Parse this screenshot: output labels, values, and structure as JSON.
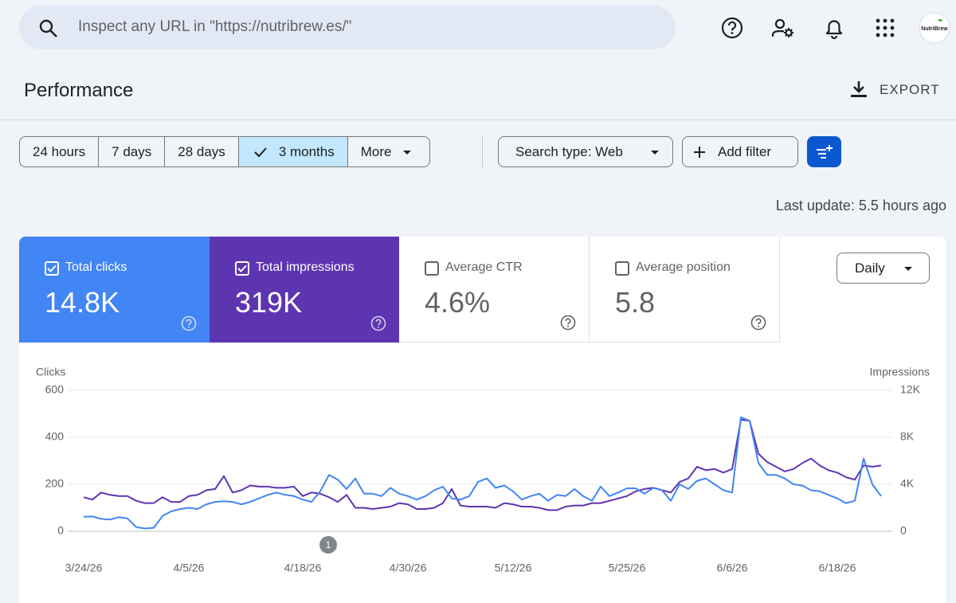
{
  "search": {
    "placeholder": "Inspect any URL in \"https://nutribrew.es/\""
  },
  "header": {
    "avatar": "NutriBrew",
    "title": "Performance",
    "export": "EXPORT"
  },
  "filters": {
    "ranges": [
      "24 hours",
      "7 days",
      "28 days",
      "3 months",
      "More"
    ],
    "search_type": "Search type: Web",
    "add_filter": "Add filter"
  },
  "last_update": "Last update: 5.5 hours ago",
  "metrics": [
    {
      "label": "Total clicks",
      "value": "14.8K"
    },
    {
      "label": "Total impressions",
      "value": "319K"
    },
    {
      "label": "Average CTR",
      "value": "4.6%"
    },
    {
      "label": "Average position",
      "value": "5.8"
    }
  ],
  "granularity": "Daily",
  "chart_data": {
    "type": "line",
    "ylabel": "Clicks",
    "y2label": "Impressions",
    "annotation": "1",
    "grid": true,
    "categories": [
      "3/24/26",
      null,
      null,
      null,
      null,
      null,
      null,
      null,
      null,
      null,
      null,
      null,
      "4/5/26",
      null,
      null,
      null,
      null,
      null,
      null,
      null,
      null,
      null,
      null,
      null,
      null,
      "4/18/26",
      null,
      null,
      null,
      null,
      null,
      null,
      null,
      null,
      null,
      null,
      null,
      "4/30/26",
      null,
      null,
      null,
      null,
      null,
      null,
      null,
      null,
      null,
      null,
      null,
      "5/12/26",
      null,
      null,
      null,
      null,
      null,
      null,
      null,
      null,
      null,
      null,
      null,
      null,
      "5/25/26",
      null,
      null,
      null,
      null,
      null,
      null,
      null,
      null,
      null,
      null,
      null,
      "6/6/26",
      null,
      null,
      null,
      null,
      null,
      null,
      null,
      null,
      null,
      null,
      null,
      "6/18/26",
      null,
      null,
      null,
      null,
      null
    ],
    "ylim": [
      0,
      600
    ],
    "yticks": [
      0,
      200,
      400,
      600
    ],
    "y2lim": [
      0,
      12000
    ],
    "y2ticks": [
      {
        "value": 0,
        "label": "0"
      },
      {
        "value": 4000,
        "label": "4K"
      },
      {
        "value": 8000,
        "label": "8K"
      },
      {
        "value": 12000,
        "label": "12K"
      }
    ],
    "series": [
      {
        "color": "#4285f4",
        "values": [
          62,
          63,
          53,
          50,
          60,
          55,
          18,
          12,
          15,
          65,
          85,
          95,
          100,
          95,
          115,
          125,
          128,
          125,
          115,
          125,
          140,
          155,
          165,
          155,
          150,
          135,
          125,
          170,
          240,
          220,
          180,
          225,
          160,
          160,
          150,
          185,
          160,
          150,
          135,
          150,
          175,
          190,
          140,
          135,
          150,
          210,
          225,
          185,
          195,
          170,
          135,
          150,
          160,
          130,
          155,
          150,
          180,
          150,
          130,
          190,
          150,
          165,
          183,
          183,
          160,
          185,
          175,
          130,
          200,
          180,
          215,
          225,
          200,
          175,
          165,
          485,
          470,
          290,
          240,
          240,
          225,
          200,
          195,
          175,
          170,
          155,
          140,
          120,
          130,
          310,
          200,
          150
        ]
      },
      {
        "color": "#5e35b1",
        "axis": "y2",
        "values": [
          2900,
          2700,
          3300,
          3100,
          3000,
          3000,
          2600,
          2400,
          2400,
          2900,
          2500,
          2500,
          3000,
          3100,
          3500,
          3600,
          4700,
          3300,
          3500,
          3900,
          3800,
          3800,
          3700,
          3700,
          3800,
          3000,
          3300,
          3200,
          2900,
          2500,
          3100,
          2000,
          2000,
          1900,
          2000,
          2100,
          2400,
          2300,
          1900,
          1900,
          2000,
          2400,
          3600,
          2200,
          2100,
          2100,
          2100,
          2000,
          2400,
          2300,
          2100,
          2100,
          2000,
          1800,
          1800,
          2100,
          2200,
          2200,
          2400,
          2400,
          2600,
          2800,
          3000,
          3400,
          3600,
          3700,
          3500,
          3300,
          4200,
          4500,
          5500,
          5200,
          5300,
          5000,
          5300,
          9500,
          9400,
          6600,
          5900,
          5500,
          5100,
          5300,
          5800,
          6200,
          5600,
          5200,
          5000,
          4600,
          4400,
          5600,
          5500,
          5600
        ]
      }
    ]
  }
}
